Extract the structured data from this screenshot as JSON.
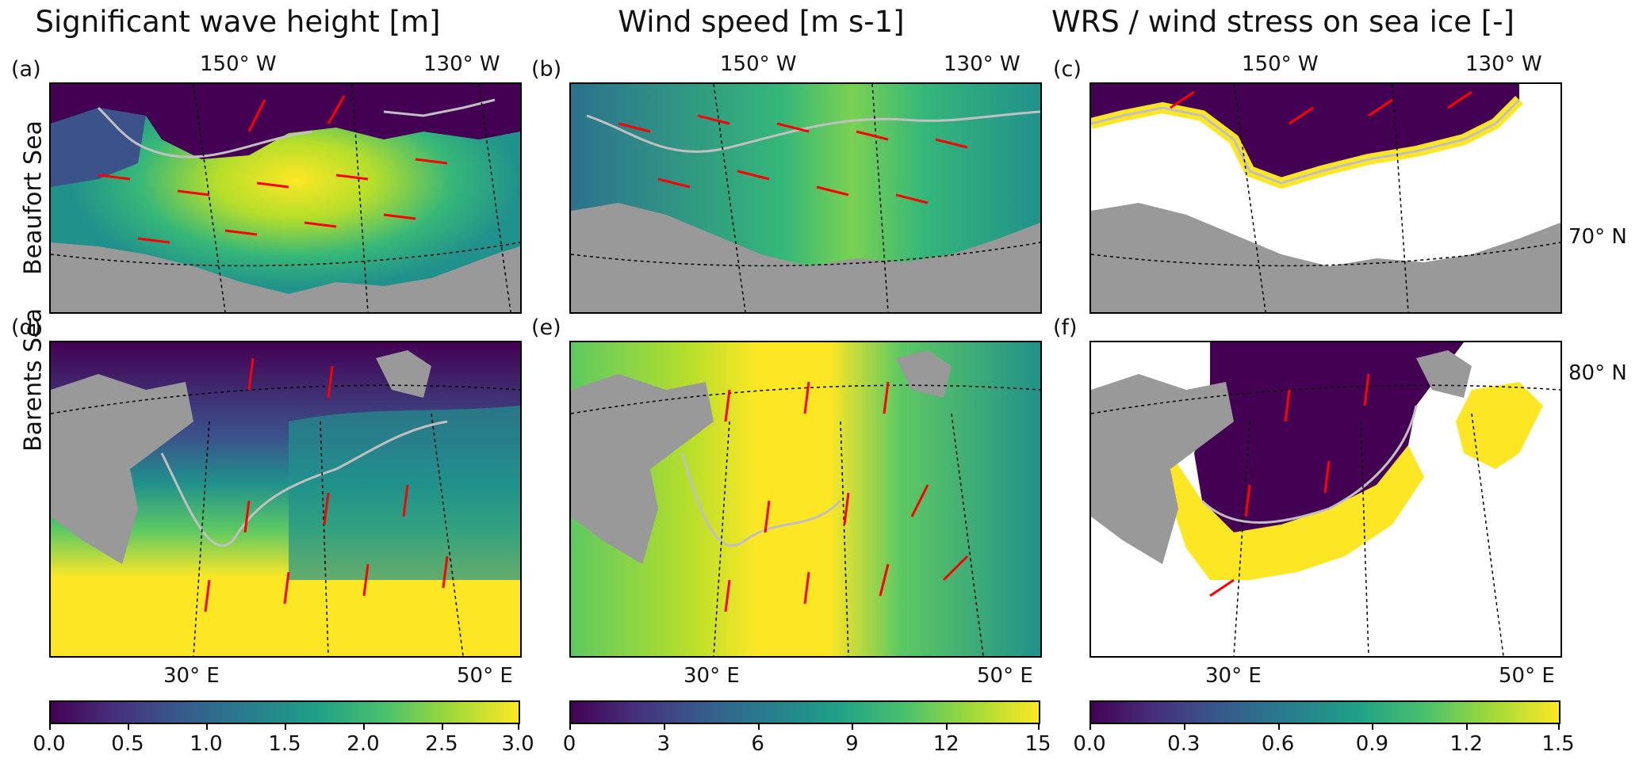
{
  "titles": {
    "col1": "Significant wave height [m]",
    "col2": "Wind speed [m s-1]",
    "col3": "WRS / wind stress on sea ice [-]"
  },
  "rows": {
    "top": "Beaufort Sea",
    "bottom": "Barents Sea"
  },
  "panels": [
    "(a)",
    "(b)",
    "(c)",
    "(d)",
    "(e)",
    "(f)"
  ],
  "lon_top": [
    "150° W",
    "130° W"
  ],
  "lon_bottom": [
    "30° E",
    "50° E"
  ],
  "lat_labels": [
    "70° N",
    "80° N"
  ],
  "colorbars": [
    {
      "ticks": [
        "0.0",
        "0.5",
        "1.0",
        "1.5",
        "2.0",
        "2.5",
        "3.0"
      ]
    },
    {
      "ticks": [
        "0",
        "3",
        "6",
        "9",
        "12",
        "15"
      ]
    },
    {
      "ticks": [
        "0.0",
        "0.3",
        "0.6",
        "0.9",
        "1.2",
        "1.5"
      ]
    }
  ],
  "colors": {
    "viridis_low": "#440154",
    "viridis_mid": "#21918c",
    "viridis_high": "#fde725",
    "land": "#999999",
    "arrows": "#ff0000",
    "ice_edge": "#c0c0c0"
  }
}
